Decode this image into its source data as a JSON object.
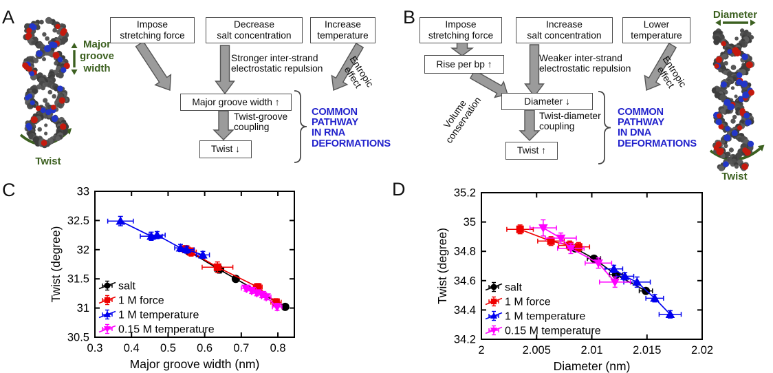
{
  "colors": {
    "pathway_blue": "#2222cc",
    "annotation_green": "#3c6020",
    "arrow_fill": "#9b9b9b",
    "arrow_stroke": "#555555",
    "brace_gray": "#444444",
    "molecule_red": "#c41a0e",
    "molecule_blue": "#2236c8"
  },
  "panel_a": {
    "label": "A",
    "molecule": {
      "groove_label": "Major\ngroove\nwidth",
      "twist_label": "Twist"
    },
    "box_force": "Impose\nstretching force",
    "box_salt": "Decrease\nsalt concentration",
    "box_temp": "Increase\ntemperature",
    "note_salt": "Stronger inter-strand\nelectrostatic repulsion",
    "note_entropic": "Entropic\neffect",
    "box_groove": "Major groove width ↑",
    "note_coupling": "Twist-groove\ncoupling",
    "box_twist": "Twist ↓",
    "pathway": "COMMON\nPATHWAY\nIN RNA\nDEFORMATIONS"
  },
  "panel_b": {
    "label": "B",
    "molecule": {
      "diameter_label": "Diameter",
      "twist_label": "Twist"
    },
    "box_force": "Impose\nstretching force",
    "box_rise": "Rise per bp ↑",
    "note_volume": "Volume\nconservation",
    "box_salt": "Increase\nsalt concentration",
    "note_salt": "Weaker inter-strand\nelectrostatic repulsion",
    "box_temp": "Lower\ntemperature",
    "note_entropic": "Entropic\neffect",
    "box_diameter": "Diameter ↓",
    "note_coupling": "Twist-diameter\ncoupling",
    "box_twist": "Twist ↑",
    "pathway": "COMMON\nPATHWAY\nIN DNA\nDEFORMATIONS"
  },
  "chart_data": [
    {
      "id": "C",
      "panel_label": "C",
      "type": "line",
      "xlabel": "Major groove width (nm)",
      "ylabel": "Twist (degree)",
      "xlim": [
        0.3,
        0.845
      ],
      "ylim": [
        30.5,
        33
      ],
      "grid": false,
      "legend_position": "lower-left",
      "xticks": {
        "values": [
          0.3,
          0.4,
          0.5,
          0.6,
          0.7,
          0.8
        ],
        "labels": [
          "0.3",
          "0.4",
          "0.5",
          "0.6",
          "0.7",
          "0.8"
        ]
      },
      "yticks": {
        "values": [
          30.5,
          31,
          31.5,
          32,
          32.5,
          33
        ],
        "labels": [
          "30.5",
          "31",
          "31.5",
          "32",
          "32.5",
          "33"
        ]
      },
      "series": [
        {
          "name": "salt",
          "color": "#000000",
          "marker": "circle",
          "points": [
            [
              0.557,
              31.97,
              0.008,
              0.05
            ],
            [
              0.64,
              31.66,
              0.012,
              0.06
            ],
            [
              0.685,
              31.5,
              0.008,
              0.05
            ],
            [
              0.82,
              31.02,
              0.008,
              0.05
            ]
          ]
        },
        {
          "name": "1 M force",
          "color": "#ee0000",
          "marker": "square",
          "points": [
            [
              0.548,
              32.01,
              0.012,
              0.06
            ],
            [
              0.563,
              31.96,
              0.014,
              0.07
            ],
            [
              0.635,
              31.7,
              0.042,
              0.09
            ],
            [
              0.745,
              31.36,
              0.012,
              0.06
            ],
            [
              0.795,
              31.1,
              0.014,
              0.06
            ]
          ]
        },
        {
          "name": "1 M temperature",
          "color": "#0000ee",
          "marker": "triangle-up",
          "points": [
            [
              0.37,
              32.49,
              0.035,
              0.08
            ],
            [
              0.454,
              32.23,
              0.03,
              0.07
            ],
            [
              0.47,
              32.25,
              0.022,
              0.06
            ],
            [
              0.534,
              32.03,
              0.016,
              0.06
            ],
            [
              0.551,
              32.0,
              0.02,
              0.06
            ],
            [
              0.595,
              31.91,
              0.018,
              0.06
            ]
          ]
        },
        {
          "name": "0.15 M temperature",
          "color": "#ff00ff",
          "marker": "triangle-down",
          "points": [
            [
              0.713,
              31.34,
              0.013,
              0.05
            ],
            [
              0.728,
              31.3,
              0.013,
              0.05
            ],
            [
              0.742,
              31.26,
              0.013,
              0.05
            ],
            [
              0.756,
              31.23,
              0.013,
              0.05
            ],
            [
              0.768,
              31.19,
              0.013,
              0.05
            ],
            [
              0.798,
              31.02,
              0.013,
              0.06
            ]
          ]
        }
      ]
    },
    {
      "id": "D",
      "panel_label": "D",
      "type": "line",
      "xlabel": "Diameter (nm)",
      "ylabel": "Twist (degree)",
      "xlim": [
        2.0,
        2.02
      ],
      "ylim": [
        34.2,
        35.2
      ],
      "grid": false,
      "legend_position": "lower-left",
      "xticks": {
        "values": [
          2,
          2.005,
          2.01,
          2.015,
          2.02
        ],
        "labels": [
          "2",
          "2.005",
          "2.01",
          "2.015",
          "2.02"
        ]
      },
      "yticks": {
        "values": [
          34.2,
          34.4,
          34.6,
          34.8,
          35,
          35.2
        ],
        "labels": [
          "34.2",
          "34.4",
          "34.6",
          "34.8",
          "35",
          "35.2"
        ]
      },
      "series": [
        {
          "name": "salt",
          "color": "#000000",
          "marker": "circle",
          "points": [
            [
              2.0085,
              34.82,
              0.0006,
              0.02
            ],
            [
              2.0102,
              34.75,
              0.0006,
              0.02
            ],
            [
              2.0122,
              34.64,
              0.0006,
              0.02
            ],
            [
              2.0149,
              34.53,
              0.0006,
              0.02
            ]
          ]
        },
        {
          "name": "1 M force",
          "color": "#ee0000",
          "marker": "square",
          "points": [
            [
              2.0035,
              34.95,
              0.0012,
              0.03
            ],
            [
              2.0063,
              34.87,
              0.0012,
              0.03
            ],
            [
              2.008,
              34.84,
              0.001,
              0.03
            ],
            [
              2.0088,
              34.83,
              0.001,
              0.03
            ]
          ]
        },
        {
          "name": "1 M temperature",
          "color": "#0000ee",
          "marker": "triangle-up",
          "points": [
            [
              2.012,
              34.68,
              0.0008,
              0.025
            ],
            [
              2.013,
              34.63,
              0.0008,
              0.025
            ],
            [
              2.0141,
              34.59,
              0.0012,
              0.035
            ],
            [
              2.0157,
              34.48,
              0.0008,
              0.025
            ],
            [
              2.0171,
              34.37,
              0.001,
              0.025
            ]
          ]
        },
        {
          "name": "0.15 M temperature",
          "color": "#ff00ff",
          "marker": "triangle-down",
          "points": [
            [
              2.0056,
              34.96,
              0.0012,
              0.055
            ],
            [
              2.0072,
              34.89,
              0.0014,
              0.035
            ],
            [
              2.0081,
              34.82,
              0.0012,
              0.035
            ],
            [
              2.0106,
              34.72,
              0.0012,
              0.035
            ],
            [
              2.0121,
              34.59,
              0.0014,
              0.035
            ]
          ]
        }
      ]
    }
  ]
}
